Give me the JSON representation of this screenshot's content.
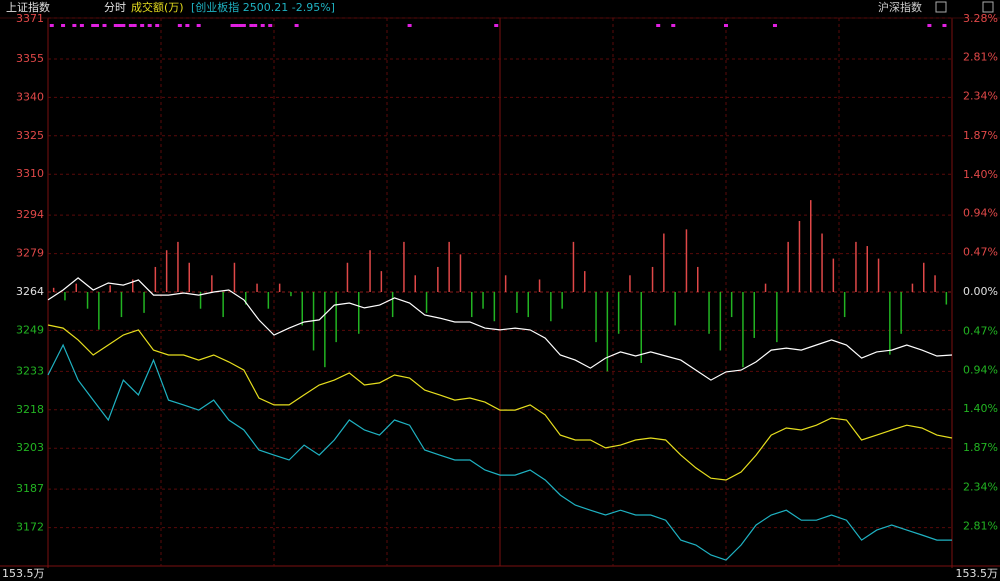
{
  "header": {
    "index_name": "上证指数",
    "mode": "分时",
    "indicator": "成交额(万)",
    "compare": "[创业板指 2500.21 -2.95%]",
    "right_label": "沪深指数"
  },
  "chart_data": {
    "type": "line",
    "ylim": [
      3157,
      3371
    ],
    "yticks": [
      3371,
      3355,
      3340,
      3325,
      3310,
      3294,
      3279,
      3264,
      3249,
      3233,
      3218,
      3203,
      3187,
      3172
    ],
    "y2lim": [
      -3.28,
      3.28
    ],
    "y2ticks": [
      {
        "value": 3.28,
        "label": "3.28%"
      },
      {
        "value": 2.81,
        "label": "2.81%"
      },
      {
        "value": 2.34,
        "label": "2.34%"
      },
      {
        "value": 1.87,
        "label": "1.87%"
      },
      {
        "value": 1.4,
        "label": "1.40%"
      },
      {
        "value": 0.94,
        "label": "0.94%"
      },
      {
        "value": 0.47,
        "label": "0.47%"
      },
      {
        "value": 0,
        "label": "0.00%"
      },
      {
        "value": -0.47,
        "label": "0.47%"
      },
      {
        "value": -0.94,
        "label": "0.94%"
      },
      {
        "value": -1.4,
        "label": "1.40%"
      },
      {
        "value": -1.87,
        "label": "1.87%"
      },
      {
        "value": -2.34,
        "label": "2.34%"
      },
      {
        "value": -2.81,
        "label": "2.81%"
      }
    ],
    "xlim": [
      0,
      240
    ],
    "grid": true,
    "series": [
      {
        "color": "#ffffff",
        "values": [
          3260.9,
          3264.8,
          3269.5,
          3264.8,
          3267.5,
          3266.7,
          3268.7,
          3262.8,
          3262.8,
          3263.6,
          3262.8,
          3264.0,
          3264.8,
          3260.9,
          3253.1,
          3247.2,
          3249.9,
          3252.3,
          3253.1,
          3258.9,
          3259.7,
          3257.8,
          3258.9,
          3261.7,
          3259.7,
          3255.0,
          3253.8,
          3252.3,
          3252.3,
          3249.9,
          3249.2,
          3249.9,
          3249.2,
          3246.0,
          3239.4,
          3237.4,
          3234.3,
          3238.2,
          3240.6,
          3239.0,
          3240.6,
          3239.0,
          3237.4,
          3233.5,
          3229.6,
          3232.8,
          3233.5,
          3236.7,
          3241.3,
          3242.1,
          3241.3,
          3243.3,
          3245.3,
          3243.3,
          3238.2,
          3240.6,
          3241.3,
          3243.3,
          3241.3,
          3239.0,
          3239.4
        ]
      },
      {
        "color": "#e6de1e",
        "values": [
          3251.1,
          3249.9,
          3245.3,
          3239.4,
          3243.3,
          3247.2,
          3249.2,
          3241.3,
          3239.4,
          3239.4,
          3237.4,
          3239.4,
          3236.7,
          3233.5,
          3222.6,
          3219.9,
          3219.9,
          3223.8,
          3227.7,
          3229.6,
          3232.4,
          3227.7,
          3228.5,
          3231.6,
          3230.4,
          3225.7,
          3223.8,
          3221.8,
          3222.6,
          3221.0,
          3217.9,
          3217.9,
          3219.9,
          3216.0,
          3208.1,
          3206.2,
          3206.2,
          3203.1,
          3204.2,
          3206.2,
          3207.0,
          3206.2,
          3200.3,
          3195.3,
          3191.3,
          3190.6,
          3193.7,
          3200.3,
          3208.1,
          3210.9,
          3210.1,
          3212.0,
          3214.8,
          3214.0,
          3206.2,
          3208.1,
          3210.1,
          3212.0,
          3210.9,
          3208.1,
          3207.0
        ]
      },
      {
        "color": "#1fb2c2",
        "values": [
          3231.6,
          3243.3,
          3229.6,
          3221.8,
          3214.0,
          3229.6,
          3223.8,
          3237.4,
          3221.8,
          3219.9,
          3217.9,
          3221.8,
          3214.0,
          3210.1,
          3202.3,
          3200.3,
          3198.4,
          3204.2,
          3200.3,
          3206.2,
          3214.0,
          3210.1,
          3208.1,
          3214.0,
          3212.0,
          3202.3,
          3200.3,
          3198.4,
          3198.4,
          3194.5,
          3192.5,
          3192.5,
          3194.5,
          3190.6,
          3184.7,
          3180.8,
          3178.8,
          3176.9,
          3178.8,
          3176.9,
          3176.9,
          3174.9,
          3167.1,
          3165.2,
          3161.3,
          3159.3,
          3165.2,
          3173.0,
          3176.9,
          3178.8,
          3174.9,
          3174.9,
          3176.9,
          3174.9,
          3167.1,
          3171.0,
          3173.0,
          3171.0,
          3169.1,
          3167.1,
          3167.1
        ]
      },
      {
        "type": "bar",
        "axis": "y2",
        "up_color": "#e04848",
        "down_color": "#22b422",
        "values": [
          0.05,
          -0.1,
          0.1,
          -0.2,
          -0.45,
          0.08,
          -0.3,
          0.15,
          -0.25,
          0.3,
          0.5,
          0.6,
          0.35,
          -0.2,
          0.2,
          -0.3,
          0.35,
          -0.15,
          0.1,
          -0.2,
          0.1,
          -0.05,
          -0.4,
          -0.7,
          -0.9,
          -0.6,
          0.35,
          -0.5,
          0.5,
          0.25,
          -0.3,
          0.6,
          0.2,
          -0.25,
          0.3,
          0.6,
          0.45,
          -0.3,
          -0.2,
          -0.35,
          0.2,
          -0.25,
          -0.3,
          0.15,
          -0.35,
          -0.2,
          0.6,
          0.25,
          -0.6,
          -0.95,
          -0.5,
          0.2,
          -0.85,
          0.3,
          0.7,
          -0.4,
          0.75,
          0.3,
          -0.5,
          -0.7,
          -0.3,
          -0.9,
          -0.55,
          0.1,
          -0.6,
          0.6,
          0.85,
          1.1,
          0.7,
          0.4,
          -0.3,
          0.6,
          0.55,
          0.4,
          -0.75,
          -0.5,
          0.1,
          0.35,
          0.2,
          -0.15
        ]
      }
    ],
    "markers": {
      "color": "#e020e0",
      "x": [
        1,
        4,
        7,
        9,
        12,
        13,
        15,
        18,
        19,
        20,
        22,
        23,
        25,
        27,
        29,
        35,
        37,
        40,
        49,
        50,
        51,
        52,
        54,
        55,
        57,
        59,
        66,
        96,
        119,
        162,
        166,
        180,
        193,
        234,
        238
      ]
    },
    "volume_label": "153.5万"
  }
}
